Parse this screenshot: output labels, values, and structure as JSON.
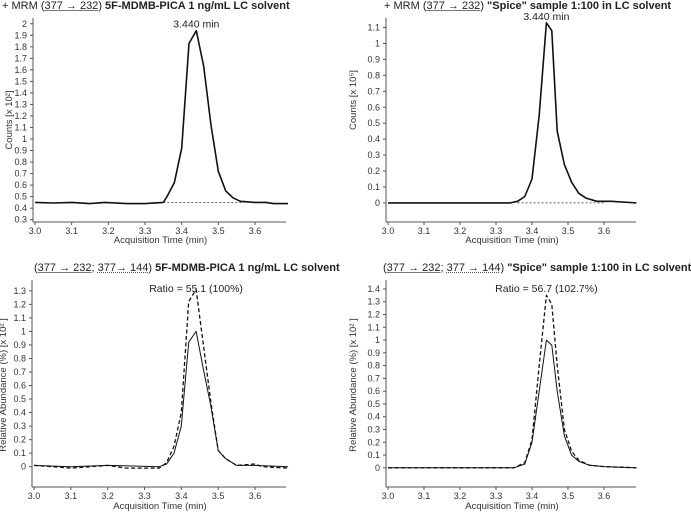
{
  "chart_data": [
    {
      "type": "line",
      "title": {
        "prefix": "+ MRM ",
        "transition_1": "377 → 232",
        "compound": "5F-MDMB-PICA 1 ng/mL LC solvent"
      },
      "annotation": "3.440 min",
      "xlabel": "Acquisition Time (min)",
      "ylabel": "Counts [x 10²]",
      "xlim": [
        3.0,
        3.69
      ],
      "ylim": [
        0.28,
        2.05
      ],
      "xticks": [
        "3.0",
        "3.1",
        "3.2",
        "3.3",
        "3.4",
        "3.5",
        "3.6"
      ],
      "yticks": [
        "0.3",
        "0.4",
        "0.5",
        "0.6",
        "0.7",
        "0.8",
        "0.9",
        "1",
        "1.1",
        "1.2",
        "1.3",
        "1.4",
        "1.5",
        "1.6",
        "1.7",
        "1.8",
        "1.9",
        "2"
      ],
      "baseline": {
        "x": [
          3.35,
          3.57
        ],
        "y": 0.45
      },
      "series": [
        {
          "name": "377 → 232",
          "style": "solid",
          "points": [
            [
              3.0,
              0.45
            ],
            [
              3.05,
              0.445
            ],
            [
              3.1,
              0.45
            ],
            [
              3.15,
              0.44
            ],
            [
              3.19,
              0.45
            ],
            [
              3.25,
              0.44
            ],
            [
              3.3,
              0.44
            ],
            [
              3.35,
              0.45
            ],
            [
              3.36,
              0.5
            ],
            [
              3.38,
              0.62
            ],
            [
              3.4,
              0.92
            ],
            [
              3.42,
              1.83
            ],
            [
              3.44,
              1.94
            ],
            [
              3.46,
              1.63
            ],
            [
              3.48,
              1.12
            ],
            [
              3.5,
              0.72
            ],
            [
              3.52,
              0.55
            ],
            [
              3.54,
              0.49
            ],
            [
              3.56,
              0.46
            ],
            [
              3.6,
              0.45
            ],
            [
              3.63,
              0.45
            ],
            [
              3.65,
              0.44
            ],
            [
              3.69,
              0.44
            ]
          ]
        }
      ]
    },
    {
      "type": "line",
      "title": {
        "prefix": "+ MRM ",
        "transition_1": "377 → 232",
        "compound": "\"Spice\" sample 1:100 in LC solvent"
      },
      "annotation": "3.440 min",
      "xlabel": "Acquisition Time (min)",
      "ylabel": "Counts [x 10⁵]",
      "xlim": [
        3.0,
        3.69
      ],
      "ylim": [
        -0.12,
        1.16
      ],
      "xticks": [
        "3.0",
        "3.1",
        "3.2",
        "3.3",
        "3.4",
        "3.5",
        "3.6"
      ],
      "yticks": [
        "0",
        "0.1",
        "0.2",
        "0.3",
        "0.4",
        "0.5",
        "0.6",
        "0.7",
        "0.8",
        "0.9",
        "1",
        "1.1"
      ],
      "baseline": {
        "x": [
          3.36,
          3.6
        ],
        "y": 0
      },
      "series": [
        {
          "name": "377 → 232",
          "style": "solid",
          "points": [
            [
              3.0,
              0
            ],
            [
              3.34,
              0
            ],
            [
              3.36,
              0.01
            ],
            [
              3.38,
              0.04
            ],
            [
              3.4,
              0.15
            ],
            [
              3.42,
              0.55
            ],
            [
              3.44,
              1.13
            ],
            [
              3.455,
              1.08
            ],
            [
              3.47,
              0.45
            ],
            [
              3.49,
              0.24
            ],
            [
              3.51,
              0.13
            ],
            [
              3.53,
              0.06
            ],
            [
              3.55,
              0.03
            ],
            [
              3.58,
              0.01
            ],
            [
              3.62,
              0.01
            ],
            [
              3.69,
              0
            ]
          ]
        }
      ]
    },
    {
      "type": "line",
      "title": {
        "prefix": "",
        "transition_1": "377 → 232",
        "separator": "; ",
        "transition_2": "377→ 144",
        "compound": "5F-MDMB-PICA 1 ng/mL LC solvent"
      },
      "annotation": "Ratio = 55.1 (100%)",
      "xlabel": "Acquisition Time (min)",
      "ylabel": "Relative Abundance (%)  [x 10² ]",
      "xlim": [
        3.0,
        3.69
      ],
      "ylim": [
        -0.15,
        1.38
      ],
      "xticks": [
        "3.0",
        "3.1",
        "3.2",
        "3.3",
        "3.4",
        "3.5",
        "3.6"
      ],
      "yticks": [
        "0",
        "0.1",
        "0.2",
        "0.3",
        "0.4",
        "0.5",
        "0.6",
        "0.7",
        "0.8",
        "0.9",
        "1",
        "1.1",
        "1.2",
        "1.3"
      ],
      "series": [
        {
          "name": "377 → 232",
          "style": "solid",
          "points": [
            [
              3.0,
              0.01
            ],
            [
              3.1,
              0
            ],
            [
              3.2,
              0.01
            ],
            [
              3.34,
              0
            ],
            [
              3.36,
              0.02
            ],
            [
              3.38,
              0.1
            ],
            [
              3.4,
              0.3
            ],
            [
              3.42,
              0.92
            ],
            [
              3.44,
              1.0
            ],
            [
              3.46,
              0.72
            ],
            [
              3.48,
              0.45
            ],
            [
              3.5,
              0.12
            ],
            [
              3.52,
              0.06
            ],
            [
              3.55,
              0.01
            ],
            [
              3.6,
              0.01
            ],
            [
              3.69,
              0
            ]
          ]
        },
        {
          "name": "377 → 144",
          "style": "dashed",
          "points": [
            [
              3.0,
              0.01
            ],
            [
              3.05,
              0
            ],
            [
              3.1,
              -0.01
            ],
            [
              3.2,
              0.01
            ],
            [
              3.25,
              -0.01
            ],
            [
              3.34,
              -0.01
            ],
            [
              3.36,
              0.03
            ],
            [
              3.38,
              0.15
            ],
            [
              3.4,
              0.4
            ],
            [
              3.42,
              1.22
            ],
            [
              3.44,
              1.31
            ],
            [
              3.46,
              0.9
            ],
            [
              3.48,
              0.48
            ],
            [
              3.5,
              0.12
            ],
            [
              3.52,
              0.06
            ],
            [
              3.55,
              0.01
            ],
            [
              3.6,
              0.02
            ],
            [
              3.62,
              0.0
            ],
            [
              3.69,
              -0.01
            ]
          ]
        }
      ]
    },
    {
      "type": "line",
      "title": {
        "prefix": "",
        "transition_1": "377 → 232",
        "separator": "; ",
        "transition_2": "377 → 144",
        "compound": "\"Spice\" sample 1:100 in LC solvent"
      },
      "annotation": "Ratio = 56.7 (102.7%)",
      "xlabel": "Acquisition Time (min)",
      "ylabel": "Relative Abundance (%)  [x 10² ]",
      "xlim": [
        3.0,
        3.69
      ],
      "ylim": [
        -0.15,
        1.47
      ],
      "xticks": [
        "3.0",
        "3.1",
        "3.2",
        "3.3",
        "3.4",
        "3.5",
        "3.6"
      ],
      "yticks": [
        "0",
        "0.1",
        "0.2",
        "0.3",
        "0.4",
        "0.5",
        "0.6",
        "0.7",
        "0.8",
        "0.9",
        "1",
        "1.1",
        "1.2",
        "1.3",
        "1.4"
      ],
      "series": [
        {
          "name": "377 → 232",
          "style": "solid",
          "points": [
            [
              3.0,
              0
            ],
            [
              3.35,
              0
            ],
            [
              3.38,
              0.03
            ],
            [
              3.4,
              0.2
            ],
            [
              3.42,
              0.6
            ],
            [
              3.44,
              1.0
            ],
            [
              3.455,
              0.96
            ],
            [
              3.47,
              0.6
            ],
            [
              3.49,
              0.25
            ],
            [
              3.51,
              0.1
            ],
            [
              3.53,
              0.05
            ],
            [
              3.56,
              0.02
            ],
            [
              3.6,
              0.01
            ],
            [
              3.69,
              0
            ]
          ]
        },
        {
          "name": "377 → 144",
          "style": "dashed",
          "points": [
            [
              3.0,
              0
            ],
            [
              3.35,
              0
            ],
            [
              3.38,
              0.04
            ],
            [
              3.4,
              0.22
            ],
            [
              3.42,
              0.8
            ],
            [
              3.44,
              1.35
            ],
            [
              3.455,
              1.28
            ],
            [
              3.47,
              0.8
            ],
            [
              3.49,
              0.3
            ],
            [
              3.51,
              0.13
            ],
            [
              3.53,
              0.06
            ],
            [
              3.56,
              0.02
            ],
            [
              3.6,
              0.01
            ],
            [
              3.69,
              0
            ]
          ]
        }
      ]
    }
  ]
}
